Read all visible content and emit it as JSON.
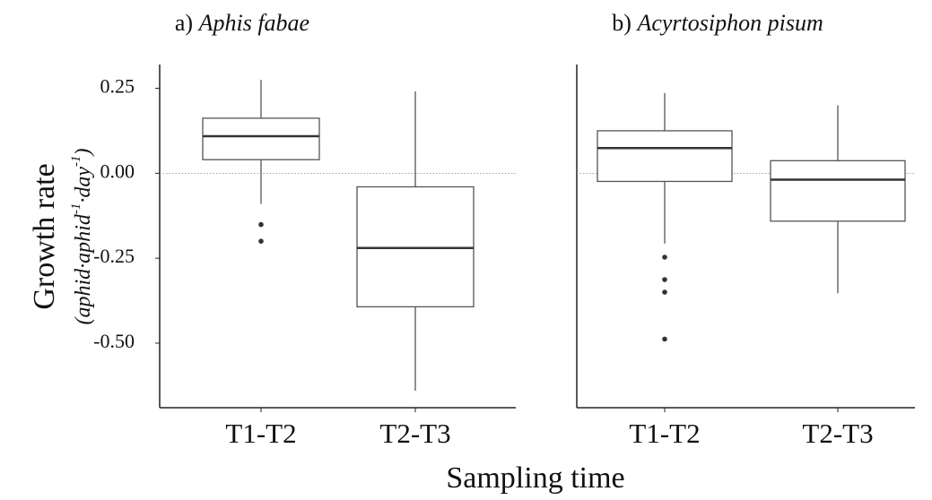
{
  "chart_data": [
    {
      "type": "box",
      "title": [
        "a)",
        "Aphis fabae"
      ],
      "categories": [
        "T1-T2",
        "T2-T3"
      ],
      "boxes": [
        {
          "whisker_low": -0.09,
          "q1": 0.04,
          "median": 0.109,
          "q3": 0.162,
          "whisker_high": 0.275,
          "outliers": [
            -0.151,
            -0.2
          ]
        },
        {
          "whisker_low": -0.64,
          "q1": -0.393,
          "median": -0.22,
          "q3": -0.04,
          "whisker_high": 0.241,
          "outliers": []
        }
      ],
      "ylim": [
        -0.69,
        0.32
      ],
      "yticks": [
        {
          "value": 0.25,
          "label": "0.25"
        },
        {
          "value": 0,
          "label": "0.00"
        },
        {
          "value": -0.25,
          "label": "-0.25"
        },
        {
          "value": -0.5,
          "label": "-0.50"
        }
      ],
      "ref_line": 0,
      "color": "#555555"
    },
    {
      "type": "box",
      "title": [
        "b)",
        "Acyrtosiphon pisum"
      ],
      "categories": [
        "T1-T2",
        "T2-T3"
      ],
      "boxes": [
        {
          "whisker_low": -0.207,
          "q1": -0.024,
          "median": 0.074,
          "q3": 0.125,
          "whisker_high": 0.236,
          "outliers": [
            -0.247,
            -0.313,
            -0.35,
            -0.488
          ]
        },
        {
          "whisker_low": -0.353,
          "q1": -0.141,
          "median": -0.019,
          "q3": 0.037,
          "whisker_high": 0.2,
          "outliers": []
        }
      ],
      "ylim": [
        -0.69,
        0.32
      ],
      "ref_line": 0,
      "color": "#555555"
    }
  ],
  "y_label": {
    "title": "Growth rate",
    "unit": [
      "(aphid·aphid",
      "-1",
      "·day",
      "-1",
      ")"
    ]
  },
  "x_label": "Sampling time"
}
